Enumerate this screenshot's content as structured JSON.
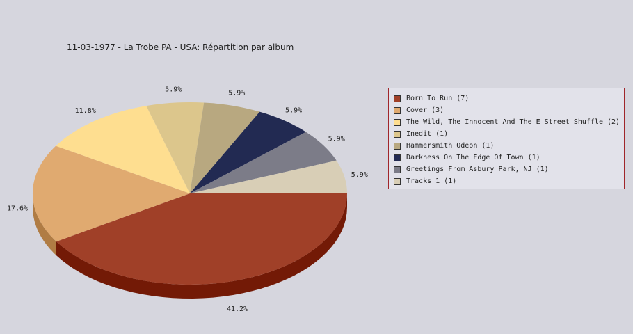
{
  "chart_data": {
    "type": "pie",
    "title": "11-03-1977 - La Trobe PA - USA:  Répartition par album",
    "series": [
      {
        "label": "Born To Run (7)",
        "value": 41.2,
        "display": "41.2%",
        "color": "#a04028",
        "side": "#731a06"
      },
      {
        "label": "Cover (3)",
        "value": 17.6,
        "display": "17.6%",
        "color": "#e0aa70",
        "side": "#b07c44"
      },
      {
        "label": "The Wild, The Innocent And The E Street Shuffle (2)",
        "value": 11.8,
        "display": "11.8%",
        "color": "#fede90",
        "side": "#c9ac62"
      },
      {
        "label": "Inedit (1)",
        "value": 5.9,
        "display": "5.9%",
        "color": "#dcc68c",
        "side": "#aa965e"
      },
      {
        "label": "Hammersmith Odeon  (1)",
        "value": 5.9,
        "display": "5.9%",
        "color": "#b8a880",
        "side": "#887a56"
      },
      {
        "label": "Darkness On The Edge Of Town (1)",
        "value": 5.9,
        "display": "5.9%",
        "color": "#222a52",
        "side": "#141a36"
      },
      {
        "label": "Greetings From Asbury Park, NJ (1)",
        "value": 5.9,
        "display": "5.9%",
        "color": "#7c7c88",
        "side": "#55555f"
      },
      {
        "label": "Tracks 1 (1)",
        "value": 5.9,
        "display": "5.9%",
        "color": "#d8ceb6",
        "side": "#a89e88"
      }
    ],
    "legend_position": "right"
  }
}
